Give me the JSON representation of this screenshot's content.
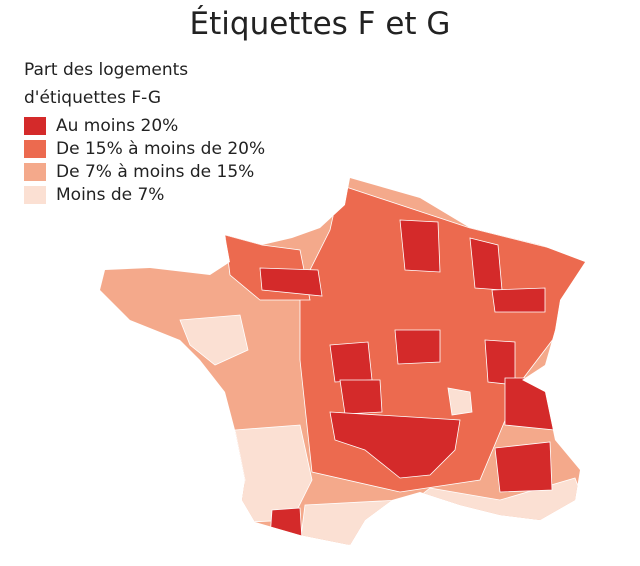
{
  "title": "Étiquettes F et G",
  "legend": {
    "title": [
      "Part des logements",
      "d'étiquettes F-G"
    ],
    "items": [
      {
        "label": "Au moins 20%",
        "color": "#d42a2a"
      },
      {
        "label": "De 15% à moins de 20%",
        "color": "#ec6a4f"
      },
      {
        "label": "De 7% à moins de 15%",
        "color": "#f4a98b"
      },
      {
        "label": "Moins de 7%",
        "color": "#fbe0d3"
      }
    ]
  }
}
